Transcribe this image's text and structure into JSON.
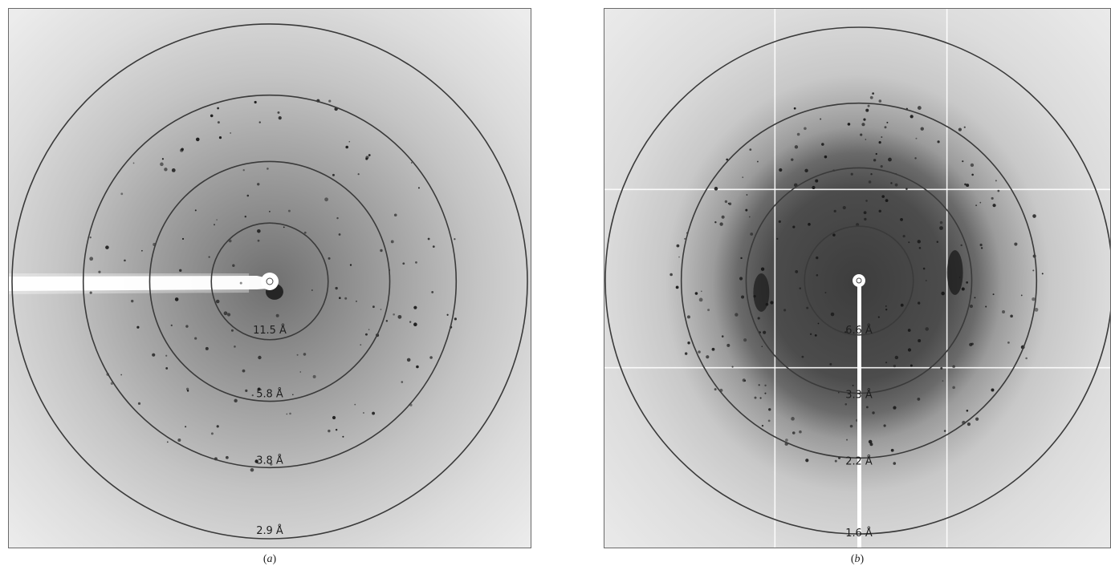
{
  "panels": [
    {
      "caption_letter": "a",
      "rings": [
        {
          "label": "11.5 Å"
        },
        {
          "label": "5.8 Å"
        },
        {
          "label": "3.8 Å"
        },
        {
          "label": "2.9 Å"
        }
      ]
    },
    {
      "caption_letter": "b",
      "rings": [
        {
          "label": "6.6 Å"
        },
        {
          "label": "3.3 Å"
        },
        {
          "label": "2.2 Å"
        },
        {
          "label": "1.6 Å"
        }
      ]
    }
  ],
  "colors": {
    "ring": "#3a3a3a",
    "spot": "#151515",
    "beam": "#ffffff"
  }
}
